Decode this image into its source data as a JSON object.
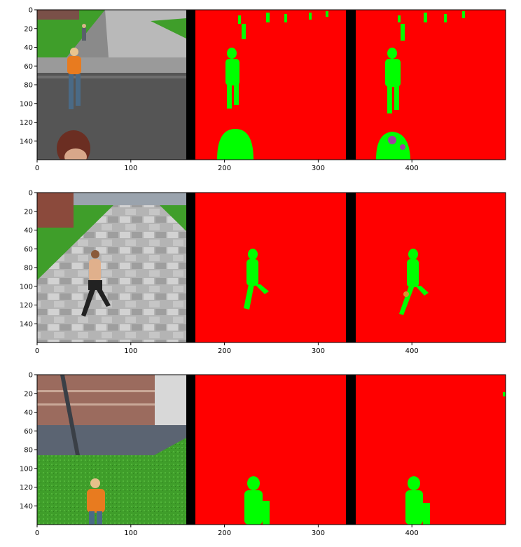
{
  "figure": {
    "panels": [
      {
        "name": "row-1",
        "x_ticks": [
          "0",
          "100",
          "200",
          "300",
          "400"
        ],
        "y_ticks": [
          "0",
          "20",
          "40",
          "60",
          "80",
          "100",
          "120",
          "140"
        ]
      },
      {
        "name": "row-2",
        "x_ticks": [
          "0",
          "100",
          "200",
          "300",
          "400"
        ],
        "y_ticks": [
          "0",
          "20",
          "40",
          "60",
          "80",
          "100",
          "120",
          "140"
        ]
      },
      {
        "name": "row-3",
        "x_ticks": [
          "0",
          "100",
          "200",
          "300",
          "400"
        ],
        "y_ticks": [
          "0",
          "20",
          "40",
          "60",
          "80",
          "100",
          "120",
          "140"
        ]
      }
    ]
  },
  "colors": {
    "mask_background": "#ff0000",
    "mask_foreground": "#00ff00",
    "separator": "#000000",
    "grass": "#3f9e2a",
    "pavement": "#b9b9b9",
    "road": "#555555",
    "brick": "#9b6b5e",
    "wall_base": "#5b6472"
  }
}
